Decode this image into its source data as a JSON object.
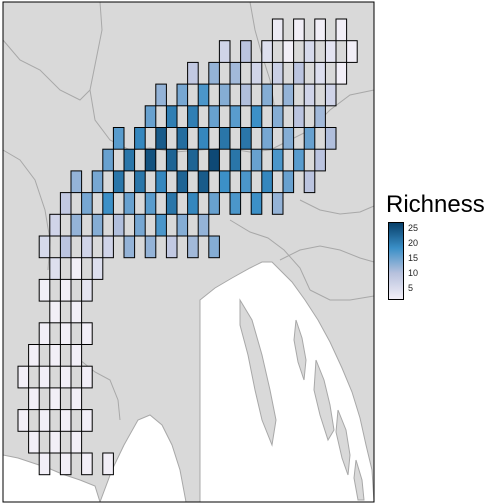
{
  "legend": {
    "title": "Richness",
    "ticks": [
      25,
      20,
      15,
      10,
      5
    ],
    "min": 1,
    "max": 27,
    "color_low": "#f2eff7",
    "color_mid": "#b7c1dd",
    "color_high_mid": "#3a8fc7",
    "color_high": "#08406a"
  },
  "map": {
    "land_color": "#d9d9d9",
    "sea_color": "#ffffff",
    "border_color": "#a8a8a8",
    "cell_outline_color": "#000000"
  }
}
